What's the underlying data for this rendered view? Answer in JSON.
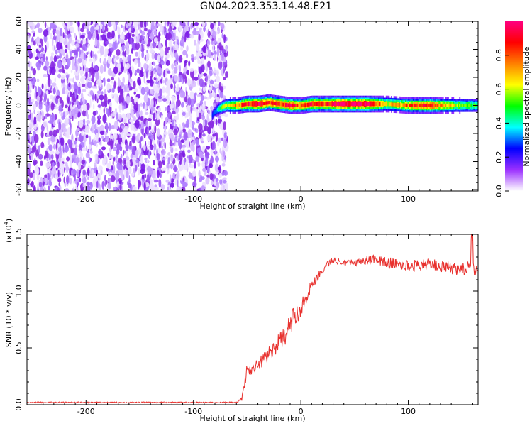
{
  "title": "GN04.2023.353.14.48.E21",
  "chart_data": [
    {
      "type": "heatmap",
      "xlabel": "Height of straight line (km)",
      "ylabel": "Frequency (Hz)",
      "xlim": [
        -255,
        165
      ],
      "ylim": [
        -61,
        60
      ],
      "xticks": [
        -200,
        -100,
        0,
        100
      ],
      "xtick_labels": [
        "-200",
        "-100",
        "0",
        "100"
      ],
      "yticks": [
        -60,
        -40,
        -20,
        0,
        20,
        40,
        60
      ],
      "ytick_labels": [
        "-60",
        "-40",
        "-20",
        "0",
        "20",
        "40",
        "60"
      ],
      "noise_region_x": [
        -255,
        -73
      ],
      "signal_band": {
        "x": [
          -83,
          -80,
          -76,
          -70,
          -60,
          -50,
          -40,
          -30,
          -20,
          -10,
          0,
          10,
          20,
          40,
          60,
          80,
          100,
          120,
          140,
          165
        ],
        "center_hz": [
          -7,
          -4,
          -2,
          0,
          0,
          1,
          1,
          2,
          1,
          0,
          0,
          1,
          1,
          1,
          1,
          1,
          0,
          0,
          0,
          0
        ],
        "peak_amplitude": [
          0.25,
          0.3,
          0.45,
          0.55,
          0.7,
          0.85,
          0.9,
          0.85,
          0.8,
          0.85,
          0.75,
          0.85,
          0.8,
          0.95,
          0.95,
          0.6,
          0.75,
          0.85,
          0.6,
          0.45
        ]
      },
      "colorbar": {
        "label": "Normalized spectral amplitude",
        "range": [
          0,
          1
        ],
        "ticks": [
          0.0,
          0.2,
          0.4,
          0.6,
          0.8
        ],
        "tick_labels": [
          "0.0",
          "0.2",
          "0.4",
          "0.6",
          "0.8"
        ],
        "colormap": [
          "#ffffff",
          "#9b30ff",
          "#0000ff",
          "#00ffff",
          "#00ff00",
          "#ffff00",
          "#ff8000",
          "#ff0000",
          "#ff0080"
        ]
      }
    },
    {
      "type": "line",
      "xlabel": "Height of straight line (km)",
      "ylabel": "SNR (10 * v/v)",
      "y_multiplier": "(x10",
      "y_multiplier_exp": "4",
      "y_multiplier_close": ")",
      "xlim": [
        -255,
        165
      ],
      "ylim": [
        0,
        1.5
      ],
      "xticks": [
        -200,
        -100,
        0,
        100
      ],
      "xtick_labels": [
        "-200",
        "-100",
        "0",
        "100"
      ],
      "yticks": [
        0.0,
        0.5,
        1.0,
        1.5
      ],
      "ytick_labels": [
        "0.0",
        "0.5",
        "1.0",
        "1.5"
      ],
      "series": [
        {
          "color": "#e8312e",
          "x": [
            -255,
            -100,
            -60,
            -55,
            -52,
            -50,
            -45,
            -40,
            -35,
            -30,
            -25,
            -20,
            -15,
            -10,
            -5,
            0,
            5,
            10,
            15,
            20,
            25,
            30,
            40,
            50,
            60,
            70,
            80,
            90,
            100,
            110,
            120,
            130,
            140,
            150,
            160,
            165
          ],
          "y": [
            0.02,
            0.02,
            0.02,
            0.05,
            0.2,
            0.32,
            0.3,
            0.35,
            0.4,
            0.45,
            0.5,
            0.55,
            0.6,
            0.7,
            0.8,
            0.85,
            0.95,
            1.05,
            1.12,
            1.18,
            1.24,
            1.27,
            1.26,
            1.25,
            1.27,
            1.28,
            1.25,
            1.24,
            1.22,
            1.23,
            1.24,
            1.22,
            1.2,
            1.2,
            1.2,
            1.2
          ],
          "noise": [
            0.005,
            0.005,
            0.005,
            0.02,
            0.05,
            0.05,
            0.05,
            0.06,
            0.06,
            0.07,
            0.07,
            0.08,
            0.09,
            0.1,
            0.1,
            0.08,
            0.06,
            0.05,
            0.05,
            0.04,
            0.03,
            0.03,
            0.03,
            0.03,
            0.04,
            0.04,
            0.05,
            0.05,
            0.05,
            0.05,
            0.05,
            0.05,
            0.06,
            0.06,
            0.08,
            0.08
          ]
        }
      ]
    }
  ]
}
